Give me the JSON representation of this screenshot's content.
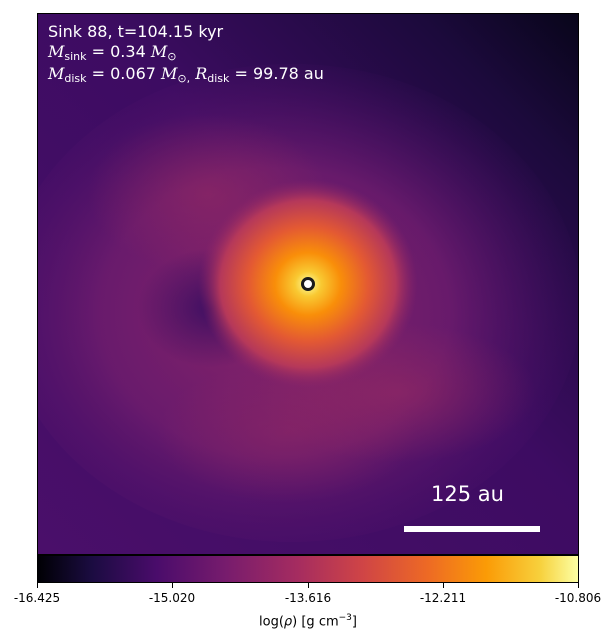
{
  "header": {
    "title": "Sink 88, t=104.15 kyr",
    "msink_symbol": "M",
    "msink_sub": "sink",
    "msink_value": "= 0.34",
    "msun_unit": "M",
    "msun_sub": "⊙",
    "mdisk_symbol": "M",
    "mdisk_sub": "disk",
    "mdisk_value": "= 0.067",
    "mdisk_unit": "M",
    "mdisk_unit_sub": "⊙,",
    "rdisk_symbol": "R",
    "rdisk_sub": "disk",
    "rdisk_value": "= 99.78 au"
  },
  "scale": {
    "label": "125 au"
  },
  "colorbar": {
    "colormap": "inferno",
    "ticks": [
      "-16.425",
      "-15.020",
      "-13.616",
      "-12.211",
      "-10.806"
    ],
    "label_prefix": "log(",
    "label_rho": "ρ",
    "label_suffix": ") [g cm",
    "label_exp": "−3",
    "label_end": "]"
  },
  "colors": {
    "background_low": "#2a0b56",
    "envelope": "#7a216c",
    "disk_core": "#fca50a",
    "peak": "#fcffa4"
  }
}
